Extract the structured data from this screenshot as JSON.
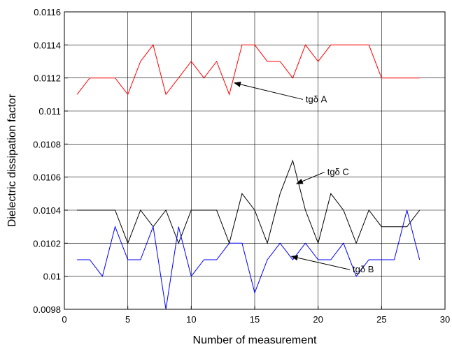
{
  "chart_data": {
    "type": "line",
    "title": "",
    "xlabel": "Number of measurement",
    "ylabel": "Dielectric dissipation factor",
    "xlim": [
      0,
      30
    ],
    "ylim": [
      0.0098,
      0.0116
    ],
    "xticks": [
      "0",
      "5",
      "10",
      "15",
      "20",
      "25",
      "30"
    ],
    "yticks": [
      "0.0098",
      "0.01",
      "0.0102",
      "0.0104",
      "0.0106",
      "0.0108",
      "0.011",
      "0.0112",
      "0.0114",
      "0.0116"
    ],
    "grid": true,
    "x": [
      1,
      2,
      3,
      4,
      5,
      6,
      7,
      8,
      9,
      10,
      11,
      12,
      13,
      14,
      15,
      16,
      17,
      18,
      19,
      20,
      21,
      22,
      23,
      24,
      25,
      26,
      27,
      28
    ],
    "series": [
      {
        "name": "tgδ A",
        "color": "#ff0000",
        "values": [
          0.0111,
          0.0112,
          0.0112,
          0.0112,
          0.0111,
          0.0113,
          0.0114,
          0.0111,
          0.0112,
          0.0113,
          0.0112,
          0.0113,
          0.0111,
          0.0114,
          0.0114,
          0.0113,
          0.0113,
          0.0112,
          0.0114,
          0.0113,
          0.0114,
          0.0114,
          0.0114,
          0.0114,
          0.0112,
          0.0112,
          0.0112,
          0.0112
        ]
      },
      {
        "name": "tgδ C",
        "color": "#000000",
        "values": [
          0.0104,
          0.0104,
          0.0104,
          0.0104,
          0.0102,
          0.0104,
          0.0103,
          0.0104,
          0.0102,
          0.0104,
          0.0104,
          0.0104,
          0.0102,
          0.0105,
          0.0104,
          0.0102,
          0.0105,
          0.0107,
          0.0104,
          0.0102,
          0.0105,
          0.0104,
          0.0102,
          0.0104,
          0.0103,
          0.0103,
          0.0103,
          0.0104
        ]
      },
      {
        "name": "tgδ B",
        "color": "#0000ff",
        "values": [
          0.0101,
          0.0101,
          0.01,
          0.0103,
          0.0101,
          0.0101,
          0.0103,
          0.0098,
          0.0103,
          0.01,
          0.0101,
          0.0101,
          0.0102,
          0.0102,
          0.0099,
          0.0101,
          0.0102,
          0.0101,
          0.0102,
          0.0101,
          0.0101,
          0.0102,
          0.01,
          0.0101,
          0.0101,
          0.0101,
          0.0104,
          0.0101
        ]
      }
    ],
    "annotations": [
      {
        "text": "tgδ A",
        "arrow_from": [
          18.8,
          0.01107
        ],
        "arrow_to": [
          13.4,
          0.01117
        ]
      },
      {
        "text": "tgδ C",
        "arrow_from": [
          20.5,
          0.01063
        ],
        "arrow_to": [
          18.3,
          0.01056
        ]
      },
      {
        "text": "tgδ B",
        "arrow_from": [
          22.5,
          0.01004
        ],
        "arrow_to": [
          17.9,
          0.01012
        ]
      }
    ]
  }
}
